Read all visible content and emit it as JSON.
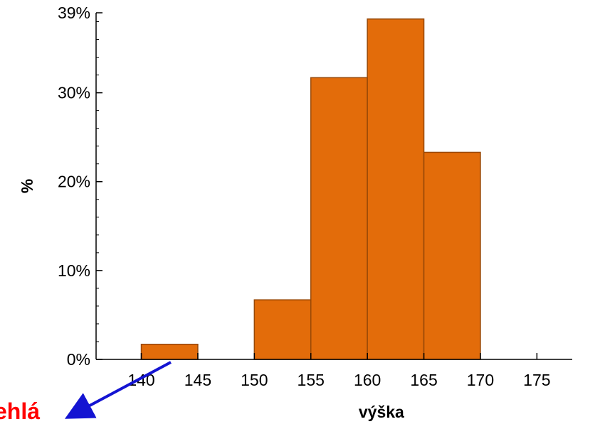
{
  "chart_data": {
    "type": "bar",
    "bins": [
      {
        "from": 140,
        "to": 145,
        "value": 1.7
      },
      {
        "from": 145,
        "to": 150,
        "value": 0
      },
      {
        "from": 150,
        "to": 155,
        "value": 6.7
      },
      {
        "from": 155,
        "to": 160,
        "value": 31.7
      },
      {
        "from": 160,
        "to": 165,
        "value": 38.3
      },
      {
        "from": 165,
        "to": 170,
        "value": 23.3
      },
      {
        "from": 170,
        "to": 175,
        "value": 0
      }
    ],
    "xlabel": "výška",
    "ylabel": "%",
    "xlim": [
      136,
      178
    ],
    "ylim": [
      0,
      39
    ],
    "x_ticks": [
      140,
      145,
      150,
      155,
      160,
      165,
      170,
      175
    ],
    "y_ticks": [
      {
        "value": 0,
        "label": "0%"
      },
      {
        "value": 10,
        "label": "10%"
      },
      {
        "value": 20,
        "label": "20%"
      },
      {
        "value": 30,
        "label": "30%"
      },
      {
        "value": 39,
        "label": "39%"
      }
    ],
    "y_minor_step": 2,
    "grid": false,
    "colors": {
      "bar_fill": "#e36c0a",
      "bar_stroke": "#984807",
      "axis": "#000000"
    },
    "annotation": {
      "text": "ehlá",
      "color": "#ff0000",
      "arrow_color": "#1414d2"
    }
  }
}
